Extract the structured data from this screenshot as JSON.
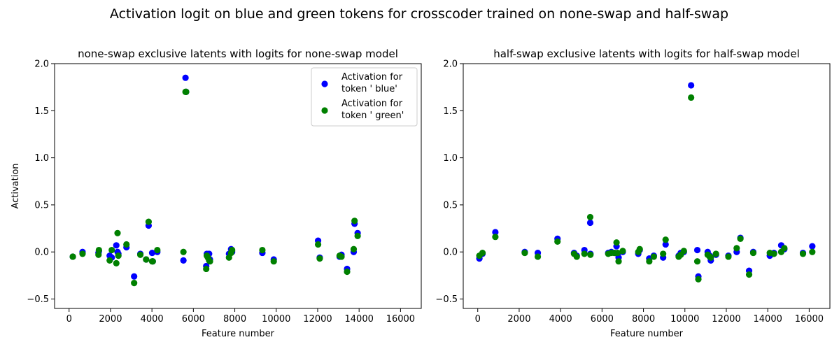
{
  "suptitle": "Activation logit on blue and green tokens for crosscoder trained on none-swap and half-swap",
  "colors": {
    "blue": "#0000ff",
    "green": "#008000"
  },
  "chart_data": [
    {
      "type": "scatter",
      "title": "none-swap exclusive latents with logits for none-swap model",
      "xlabel": "Feature number",
      "ylabel": "Activation",
      "xlim": [
        -700,
        17000
      ],
      "ylim": [
        -0.6,
        2.0
      ],
      "xticks": [
        0,
        2000,
        4000,
        6000,
        8000,
        10000,
        12000,
        14000,
        16000
      ],
      "yticks": [
        -0.5,
        0.0,
        0.5,
        1.0,
        1.5,
        2.0
      ],
      "xtick_labels": [
        "0",
        "2000",
        "4000",
        "6000",
        "8000",
        "10000",
        "12000",
        "14000",
        "16000"
      ],
      "ytick_labels": [
        "−0.5",
        "0.0",
        "0.5",
        "1.0",
        "1.5",
        "2.0"
      ],
      "legend": {
        "position": "top-right",
        "entries": [
          {
            "lines": [
              "Activation for",
              "token ' blue'"
            ],
            "color": "#0000ff"
          },
          {
            "lines": [
              "Activation for",
              "token ' green'"
            ],
            "color": "#008000"
          }
        ]
      },
      "x": [
        180,
        650,
        1420,
        1440,
        1960,
        2060,
        2280,
        2340,
        2380,
        2770,
        3140,
        3440,
        3720,
        3840,
        4010,
        4040,
        4260,
        5520,
        5620,
        5650,
        6620,
        6650,
        6700,
        6760,
        6800,
        7720,
        7820,
        7870,
        9330,
        9880,
        12020,
        12100,
        13060,
        13150,
        13420,
        13740,
        13780,
        13930
      ],
      "series": [
        {
          "name": "Activation for token ' blue'",
          "color": "#0000ff",
          "values": [
            -0.05,
            0.0,
            -0.01,
            0.01,
            -0.04,
            -0.06,
            0.07,
            0.0,
            -0.02,
            0.05,
            -0.26,
            -0.02,
            -0.08,
            0.28,
            -0.01,
            -0.1,
            0.0,
            -0.09,
            1.85,
            1.7,
            -0.15,
            -0.02,
            -0.04,
            -0.02,
            -0.08,
            -0.02,
            0.03,
            0.0,
            -0.01,
            -0.08,
            0.12,
            -0.06,
            -0.05,
            -0.03,
            -0.18,
            0.0,
            0.3,
            0.2
          ]
        },
        {
          "name": "Activation for token ' green'",
          "color": "#008000",
          "values": [
            -0.05,
            -0.02,
            -0.03,
            0.02,
            -0.09,
            0.02,
            -0.12,
            0.2,
            -0.04,
            0.08,
            -0.33,
            -0.03,
            -0.08,
            0.32,
            -0.1,
            -0.1,
            0.02,
            0.0,
            1.7,
            1.7,
            -0.18,
            -0.04,
            -0.06,
            -0.09,
            -0.1,
            -0.06,
            -0.01,
            0.02,
            0.02,
            -0.1,
            0.08,
            -0.07,
            -0.04,
            -0.05,
            -0.21,
            0.03,
            0.33,
            0.17
          ]
        }
      ]
    },
    {
      "type": "scatter",
      "title": "half-swap exclusive latents with logits for half-swap model",
      "xlabel": "Feature number",
      "ylabel": "",
      "xlim": [
        -700,
        17000
      ],
      "ylim": [
        -0.6,
        2.0
      ],
      "xticks": [
        0,
        2000,
        4000,
        6000,
        8000,
        10000,
        12000,
        14000,
        16000
      ],
      "yticks": [
        -0.5,
        0.0,
        0.5,
        1.0,
        1.5,
        2.0
      ],
      "xtick_labels": [
        "0",
        "2000",
        "4000",
        "6000",
        "8000",
        "10000",
        "12000",
        "14000",
        "16000"
      ],
      "ytick_labels": [
        "−0.5",
        "0.0",
        "0.5",
        "1.0",
        "1.5",
        "2.0"
      ],
      "x": [
        80,
        230,
        850,
        2270,
        2900,
        3850,
        4650,
        4780,
        5150,
        5430,
        5440,
        6300,
        6450,
        6600,
        6700,
        6750,
        6800,
        7000,
        7750,
        7820,
        8280,
        8500,
        8950,
        9070,
        9700,
        9800,
        9950,
        10300,
        10600,
        10650,
        11100,
        11200,
        11250,
        11500,
        12100,
        12500,
        12680,
        13100,
        13300,
        14100,
        14300,
        14650,
        14800,
        15700,
        16150
      ],
      "series": [
        {
          "name": "Activation for token ' blue'",
          "color": "#0000ff",
          "values": [
            -0.07,
            -0.02,
            0.21,
            0.0,
            -0.01,
            0.14,
            -0.01,
            -0.04,
            0.02,
            0.31,
            -0.02,
            -0.01,
            0.0,
            -0.01,
            0.06,
            -0.02,
            -0.06,
            0.0,
            -0.02,
            0.02,
            -0.07,
            -0.04,
            -0.06,
            0.08,
            -0.04,
            -0.01,
            0.0,
            1.77,
            0.02,
            -0.26,
            0.0,
            -0.04,
            -0.09,
            -0.03,
            -0.04,
            0.0,
            0.15,
            -0.2,
            0.0,
            -0.04,
            -0.01,
            0.07,
            0.03,
            -0.01,
            0.06
          ]
        },
        {
          "name": "Activation for token ' green'",
          "color": "#008000",
          "values": [
            -0.04,
            -0.01,
            0.16,
            -0.01,
            -0.05,
            0.11,
            -0.02,
            -0.05,
            -0.02,
            0.37,
            -0.03,
            -0.02,
            -0.01,
            -0.01,
            0.1,
            -0.01,
            -0.1,
            0.01,
            0.0,
            0.03,
            -0.1,
            -0.05,
            -0.02,
            0.13,
            -0.05,
            -0.03,
            0.01,
            1.64,
            -0.1,
            -0.29,
            -0.03,
            -0.05,
            -0.06,
            -0.02,
            -0.05,
            0.04,
            0.14,
            -0.24,
            -0.01,
            -0.01,
            -0.02,
            0.0,
            0.04,
            -0.02,
            0.0
          ]
        }
      ]
    }
  ]
}
